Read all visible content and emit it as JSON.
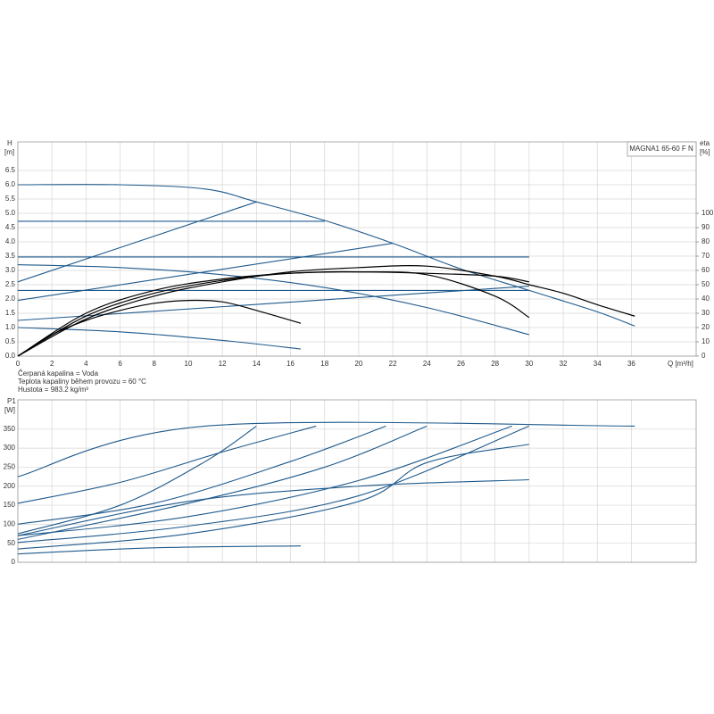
{
  "chart_data": [
    {
      "type": "line",
      "title": "MAGNA1 65-60 F N",
      "ylabel": "H",
      "yunit": "[m]",
      "y2label": "eta",
      "y2unit": "[%]",
      "xlabel": "Q [m³/h]",
      "notes": [
        "Čerpaná kapalina = Voda",
        "Teplota kapaliny během provozu = 60 °C",
        "Hustota = 983.2 kg/m³"
      ],
      "xlim": [
        0,
        39.8
      ],
      "xticks": [
        0,
        2,
        4,
        6,
        8,
        10,
        12,
        14,
        16,
        18,
        20,
        22,
        24,
        26,
        28,
        30,
        32,
        34,
        36
      ],
      "xtick_labels": true,
      "ylim": [
        0,
        7.5
      ],
      "yticks": [
        {
          "value": 0,
          "label": "0.0"
        },
        {
          "value": 0.5,
          "label": "0.5"
        },
        {
          "value": 1,
          "label": "1.0"
        },
        {
          "value": 1.5,
          "label": "1.5"
        },
        {
          "value": 2,
          "label": "2.0"
        },
        {
          "value": 2.5,
          "label": "2.5"
        },
        {
          "value": 3,
          "label": "3.0"
        },
        {
          "value": 3.5,
          "label": "3.5"
        },
        {
          "value": 4,
          "label": "4.0"
        },
        {
          "value": 4.5,
          "label": "4.5"
        },
        {
          "value": 5,
          "label": "5.0"
        },
        {
          "value": 5.5,
          "label": "5.5"
        },
        {
          "value": 6,
          "label": "6.0"
        },
        {
          "value": 6.5,
          "label": "6.5"
        }
      ],
      "y2lim": [
        0,
        150
      ],
      "y2ticks": [
        0,
        10,
        20,
        30,
        40,
        50,
        60,
        70,
        80,
        90,
        100
      ],
      "grid": true,
      "series": [
        {
          "color": "#1f5a8c",
          "x": [
            0,
            6,
            11,
            14,
            18,
            22,
            26,
            30,
            34,
            36.2
          ],
          "values": [
            6.0,
            6.0,
            5.85,
            5.4,
            4.75,
            3.95,
            3.05,
            2.3,
            1.55,
            1.05
          ]
        },
        {
          "color": "#1f5a8c",
          "x": [
            0,
            18
          ],
          "values": [
            4.72,
            4.72
          ]
        },
        {
          "color": "#1f5a8c",
          "x": [
            0,
            30
          ],
          "values": [
            3.47,
            3.47
          ]
        },
        {
          "color": "#1f5a8c",
          "x": [
            0,
            30
          ],
          "values": [
            2.3,
            2.3
          ]
        },
        {
          "color": "#1f5a8c",
          "x": [
            0,
            14
          ],
          "values": [
            2.6,
            5.4
          ]
        },
        {
          "color": "#1f5a8c",
          "x": [
            0,
            22
          ],
          "values": [
            1.95,
            3.95
          ]
        },
        {
          "color": "#1f5a8c",
          "x": [
            0,
            30
          ],
          "values": [
            1.25,
            2.45
          ]
        },
        {
          "color": "#1f5a8c",
          "x": [
            0,
            6,
            12,
            18,
            24,
            30
          ],
          "values": [
            3.2,
            3.1,
            2.85,
            2.4,
            1.7,
            0.75
          ]
        },
        {
          "color": "#1f5a8c",
          "x": [
            0,
            6,
            12,
            16.6
          ],
          "values": [
            1.0,
            0.85,
            0.55,
            0.25
          ]
        },
        {
          "color": "#000000",
          "axis": "y2",
          "x": [
            0,
            2,
            4,
            6,
            8,
            10,
            12,
            14,
            16.6
          ],
          "values": [
            0,
            15,
            25,
            32,
            37,
            39,
            38,
            32,
            23
          ]
        },
        {
          "color": "#000000",
          "axis": "y2",
          "x": [
            0,
            4,
            8,
            12,
            16,
            20,
            24,
            28,
            30
          ],
          "values": [
            0,
            28,
            44,
            53,
            58,
            59,
            57,
            42,
            27
          ]
        },
        {
          "color": "#000000",
          "axis": "y2",
          "x": [
            0,
            4,
            8,
            12,
            16,
            20,
            24,
            28,
            30,
            32,
            34,
            36.2
          ],
          "values": [
            0,
            26,
            42,
            52,
            59,
            62,
            63,
            56,
            50,
            44,
            36,
            28
          ]
        },
        {
          "color": "#000000",
          "axis": "y2",
          "x": [
            0,
            4,
            8,
            12,
            16,
            20,
            24,
            28,
            30
          ],
          "values": [
            0,
            30,
            46,
            54,
            58,
            59,
            58,
            56,
            52
          ]
        }
      ]
    },
    {
      "type": "line",
      "ylabel": "P1",
      "yunit": "[W]",
      "xlim": [
        0,
        39.8
      ],
      "xticks": [
        0,
        2,
        4,
        6,
        8,
        10,
        12,
        14,
        16,
        18,
        20,
        22,
        24,
        26,
        28,
        30,
        32,
        34,
        36
      ],
      "xtick_labels": false,
      "ylim": [
        0,
        427
      ],
      "yticks": [
        0,
        50,
        100,
        150,
        200,
        250,
        300,
        350
      ],
      "grid": true,
      "series": [
        {
          "color": "#1f5a8c",
          "x": [
            0,
            11,
            36.2
          ],
          "values": [
            225,
            358,
            358
          ]
        },
        {
          "color": "#1f5a8c",
          "x": [
            0,
            6,
            11,
            14
          ],
          "values": [
            75,
            150,
            265,
            358
          ]
        },
        {
          "color": "#1f5a8c",
          "x": [
            0,
            6,
            12,
            17.5
          ],
          "values": [
            155,
            210,
            290,
            358
          ]
        },
        {
          "color": "#1f5a8c",
          "x": [
            0,
            8,
            16,
            21.6
          ],
          "values": [
            100,
            155,
            265,
            358
          ]
        },
        {
          "color": "#1f5a8c",
          "x": [
            0,
            10,
            18,
            24
          ],
          "values": [
            60,
            155,
            250,
            358
          ]
        },
        {
          "color": "#1f5a8c",
          "x": [
            0,
            10,
            20,
            29
          ],
          "values": [
            70,
            120,
            215,
            358
          ]
        },
        {
          "color": "#1f5a8c",
          "x": [
            0,
            10,
            20,
            30
          ],
          "values": [
            52,
            95,
            175,
            358
          ]
        },
        {
          "color": "#1f5a8c",
          "x": [
            0,
            10,
            20,
            24,
            30
          ],
          "values": [
            35,
            75,
            160,
            262,
            310
          ]
        },
        {
          "color": "#1f5a8c",
          "x": [
            0,
            10,
            20,
            30
          ],
          "values": [
            70,
            160,
            200,
            217
          ]
        },
        {
          "color": "#1f5a8c",
          "x": [
            0,
            8,
            16.6
          ],
          "values": [
            22,
            38,
            43
          ]
        }
      ]
    }
  ]
}
